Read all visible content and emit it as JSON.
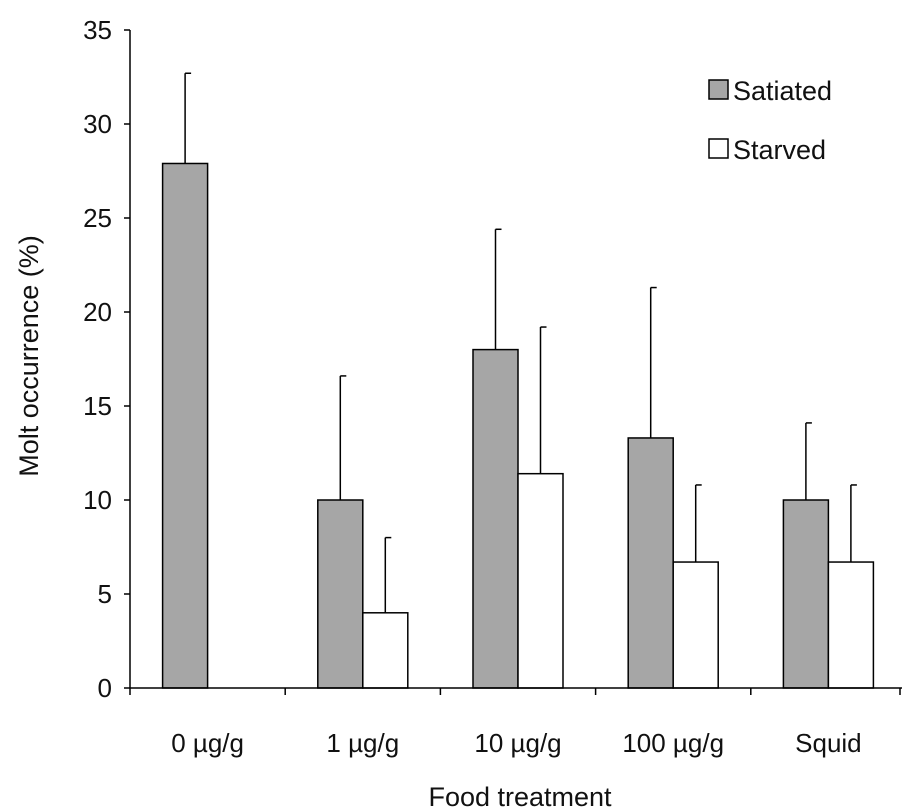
{
  "chart_data": {
    "type": "bar",
    "title": "",
    "xlabel": "Food treatment",
    "ylabel": "Molt occurrence (%)",
    "ylim": [
      0,
      35
    ],
    "yticks": [
      0,
      5,
      10,
      15,
      20,
      25,
      30,
      35
    ],
    "categories": [
      "0 µg/g",
      "1 µg/g",
      "10 µg/g",
      "100 µg/g",
      "Squid"
    ],
    "series": [
      {
        "name": "Satiated",
        "color": "#a6a6a6",
        "values": [
          27.9,
          10.0,
          18.0,
          13.3,
          10.0
        ],
        "error_upper": [
          4.8,
          6.6,
          6.4,
          8.0,
          4.1
        ]
      },
      {
        "name": "Starved",
        "color": "#ffffff",
        "values": [
          0,
          4.0,
          11.4,
          6.7,
          6.7
        ],
        "error_upper": [
          0,
          4.0,
          7.8,
          4.1,
          4.1
        ]
      }
    ],
    "legend_position": "top-right",
    "grid": false
  }
}
